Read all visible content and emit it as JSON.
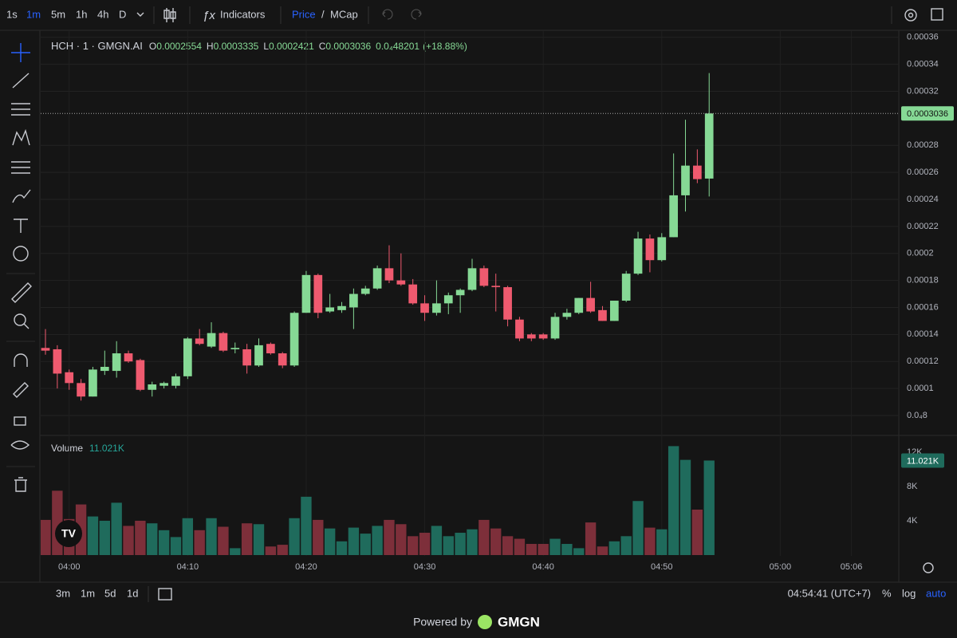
{
  "toolbar": {
    "intervals": [
      "1s",
      "1m",
      "5m",
      "1h",
      "4h",
      "D"
    ],
    "indicators": "Indicators",
    "price": "Price",
    "separator": "/",
    "mcap": "MCap"
  },
  "legend": {
    "symbol": "HCH · 1 · GMGN.AI",
    "o": "O",
    "h": "H",
    "l": "L",
    "c": "C",
    "change": "0.0₄48201",
    "change_pct": "(+18.88%)",
    "volume": "Volume",
    "volume_value": "11.021K"
  },
  "bottom_bar": {
    "ranges": [
      "3m",
      "1m",
      "5d",
      "1d"
    ],
    "clock": "04:54:41 (UTC+7)",
    "percent": "%",
    "log": "log",
    "auto": "auto"
  },
  "footer": {
    "powered_by": "Powered by",
    "brand": "GMGN"
  },
  "chart_data": {
    "type": "candlestick",
    "up_color": "#86d995",
    "down_color": "#ef5a6f",
    "volume_up_color": "#1f6b5c",
    "volume_down_color": "#7d2f3a",
    "grid": true,
    "x": [
      "03:58",
      "03:59",
      "04:00",
      "04:01",
      "04:02",
      "04:03",
      "04:04",
      "04:05",
      "04:06",
      "04:07",
      "04:08",
      "04:09",
      "04:10",
      "04:11",
      "04:12",
      "04:13",
      "04:14",
      "04:15",
      "04:16",
      "04:17",
      "04:18",
      "04:19",
      "04:20",
      "04:21",
      "04:22",
      "04:23",
      "04:24",
      "04:25",
      "04:26",
      "04:27",
      "04:28",
      "04:29",
      "04:30",
      "04:31",
      "04:32",
      "04:33",
      "04:34",
      "04:35",
      "04:36",
      "04:37",
      "04:38",
      "04:39",
      "04:40",
      "04:41",
      "04:42",
      "04:43",
      "04:44",
      "04:45",
      "04:46",
      "04:47",
      "04:48",
      "04:49",
      "04:50",
      "04:51",
      "04:52",
      "04:53",
      "04:54"
    ],
    "open": [
      0.00013,
      0.000129,
      0.000112,
      0.000104,
      9.4e-05,
      0.000113,
      0.000113,
      0.000126,
      0.000121,
      9.9e-05,
      0.000102,
      0.000102,
      0.000109,
      0.000137,
      0.000131,
      0.000141,
      0.000129,
      0.000129,
      0.000117,
      0.000133,
      0.000126,
      0.000117,
      0.000156,
      0.000184,
      0.000157,
      0.000158,
      0.00016,
      0.00017,
      0.000174,
      0.000189,
      0.00018,
      0.000177,
      0.000163,
      0.000156,
      0.000163,
      0.000169,
      0.000173,
      0.000189,
      0.000176,
      0.000175,
      0.000151,
      0.00014,
      0.00014,
      0.000137,
      0.000153,
      0.000156,
      0.000167,
      0.000158,
      0.00015,
      0.000165,
      0.000185,
      0.000211,
      0.000195,
      0.000212,
      0.000243,
      0.000265,
      0.0002554
    ],
    "high": [
      0.000144,
      0.000132,
      0.000114,
      0.000107,
      0.000116,
      0.000128,
      0.000135,
      0.000128,
      0.000122,
      0.000105,
      0.000105,
      0.000111,
      0.000138,
      0.000144,
      0.000149,
      0.000142,
      0.000134,
      0.000133,
      0.000137,
      0.000134,
      0.000127,
      0.000157,
      0.000187,
      0.000185,
      0.00017,
      0.000164,
      0.000174,
      0.000176,
      0.000191,
      0.000206,
      0.0002,
      0.000181,
      0.000169,
      0.00018,
      0.000171,
      0.000174,
      0.000196,
      0.000191,
      0.000185,
      0.000176,
      0.000153,
      0.000141,
      0.000141,
      0.000156,
      0.000159,
      0.000167,
      0.000179,
      0.000161,
      0.000165,
      0.000187,
      0.000216,
      0.000214,
      0.000215,
      0.000274,
      0.000299,
      0.000277,
      0.0003335
    ],
    "low": [
      0.000125,
      0.0001,
      9.9e-05,
      9.1e-05,
      9.4e-05,
      0.00011,
      0.000108,
      0.000119,
      9.8e-05,
      9.4e-05,
      0.0001,
      0.0001,
      0.000107,
      0.000132,
      0.00013,
      0.000127,
      0.000126,
      0.000111,
      0.000116,
      0.000125,
      0.000115,
      0.000116,
      0.000156,
      0.000152,
      0.000156,
      0.000156,
      0.000144,
      0.000169,
      0.000173,
      0.000178,
      0.000176,
      0.000162,
      0.00015,
      0.000154,
      0.000155,
      0.000156,
      0.000172,
      0.000175,
      0.000157,
      0.000146,
      0.000135,
      0.000135,
      0.000136,
      0.000136,
      0.000151,
      0.000155,
      0.000156,
      0.00015,
      0.00015,
      0.000164,
      0.000184,
      0.000186,
      0.000194,
      0.000212,
      0.000231,
      0.000252,
      0.0002421
    ],
    "close": [
      0.000128,
      0.000111,
      0.000104,
      9.4e-05,
      0.000114,
      0.000116,
      0.000126,
      0.00012,
      9.9e-05,
      0.000103,
      0.000104,
      0.000109,
      0.000137,
      0.000133,
      0.000141,
      0.000128,
      0.00013,
      0.000117,
      0.000132,
      0.000126,
      0.000117,
      0.000156,
      0.000184,
      0.000156,
      0.00016,
      0.000161,
      0.00017,
      0.000174,
      0.000189,
      0.00018,
      0.000177,
      0.000163,
      0.000156,
      0.000163,
      0.000169,
      0.000173,
      0.000189,
      0.000176,
      0.000175,
      0.000151,
      0.000137,
      0.000137,
      0.000137,
      0.000153,
      0.000156,
      0.000167,
      0.000157,
      0.00015,
      0.000165,
      0.000185,
      0.000211,
      0.000195,
      0.000212,
      0.000243,
      0.000265,
      0.000255,
      0.0003036
    ],
    "ylim": [
      6.58e-05,
      0.000364
    ],
    "yticks": [
      {
        "value": 8e-05,
        "label": "0.0₄8"
      },
      0.0001,
      0.00012,
      0.00014,
      0.00016,
      0.00018,
      0.0002,
      0.00022,
      0.00024,
      0.00026,
      0.00028,
      0.00032,
      0.00034,
      0.00036
    ],
    "xlim": [
      "03:58",
      "05:10"
    ],
    "xticks": [
      "04:00",
      "04:10",
      "04:20",
      "04:30",
      "04:40",
      "04:50",
      "05:00",
      "05:06"
    ],
    "volume": {
      "values": [
        4100,
        7500,
        4200,
        5900,
        4500,
        4000,
        6100,
        3400,
        4000,
        3700,
        2900,
        2100,
        4300,
        2900,
        4300,
        3300,
        800,
        3700,
        3600,
        1000,
        1200,
        4300,
        6800,
        4100,
        3100,
        1600,
        3200,
        2500,
        3400,
        4100,
        3600,
        2200,
        2600,
        3400,
        2200,
        2600,
        3000,
        4100,
        3100,
        2200,
        1900,
        1300,
        1300,
        1900,
        1300,
        800,
        3800,
        1000,
        1600,
        2200,
        6300,
        3200,
        3000,
        12700,
        11100,
        5300,
        11021
      ],
      "ylim": [
        0,
        13760
      ],
      "yticks": [
        {
          "value": 4000,
          "label": "4K"
        },
        {
          "value": 8000,
          "label": "8K"
        },
        {
          "value": 12000,
          "label": "12K"
        }
      ]
    }
  }
}
